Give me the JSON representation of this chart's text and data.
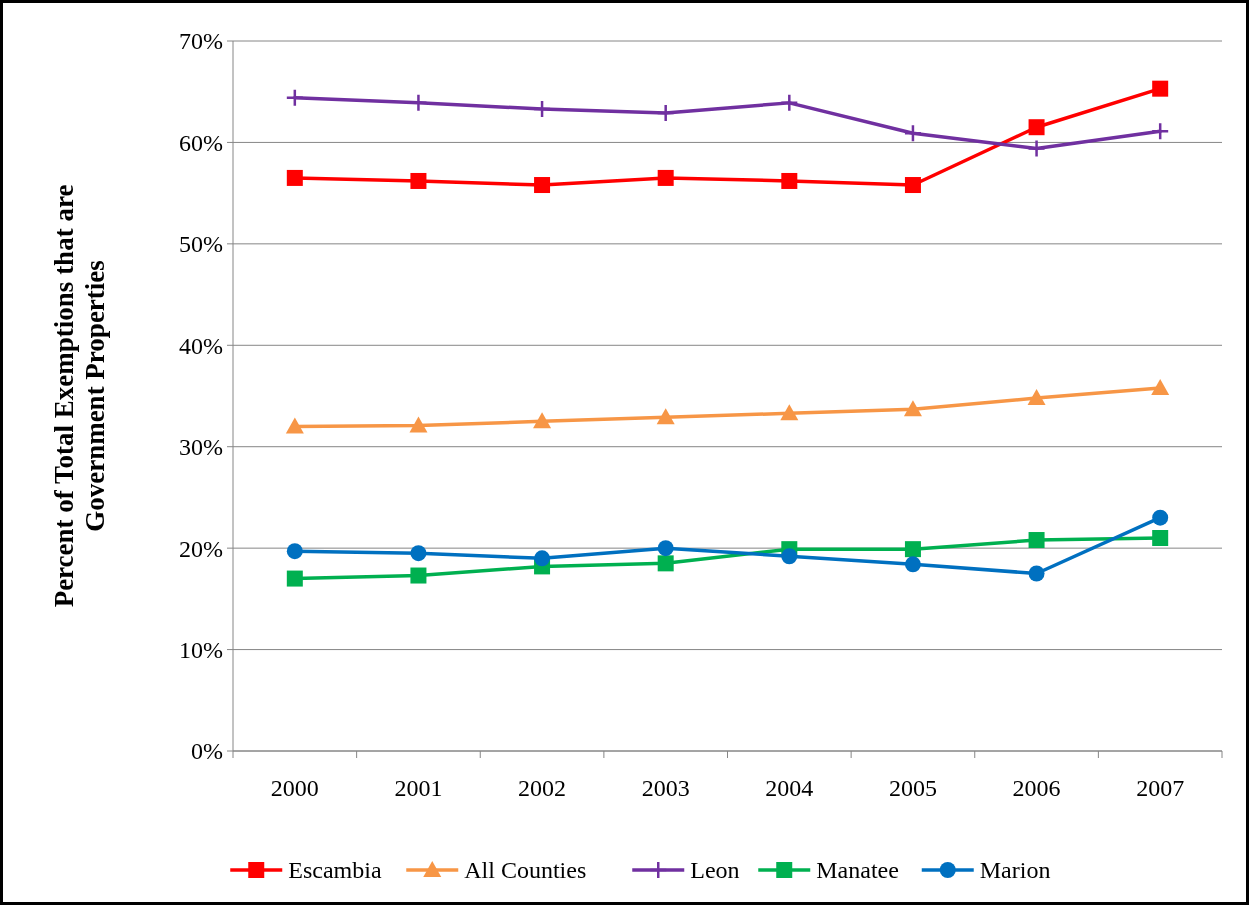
{
  "chart_data": {
    "type": "line",
    "ylabel": "Percent of Total Exemptions that are Government Properties",
    "categories": [
      "2000",
      "2001",
      "2002",
      "2003",
      "2004",
      "2005",
      "2006",
      "2007"
    ],
    "ylim": [
      0,
      70
    ],
    "yticks": [
      {
        "value": 0,
        "label": "0%"
      },
      {
        "value": 10,
        "label": "10%"
      },
      {
        "value": 20,
        "label": "20%"
      },
      {
        "value": 30,
        "label": "30%"
      },
      {
        "value": 40,
        "label": "40%"
      },
      {
        "value": 50,
        "label": "50%"
      },
      {
        "value": 60,
        "label": "60%"
      },
      {
        "value": 70,
        "label": "70%"
      }
    ],
    "grid": "y",
    "legend": "bottom",
    "series": [
      {
        "name": "Escambia",
        "color": "#ff0000",
        "marker": "square",
        "values": [
          56.5,
          56.2,
          55.8,
          56.5,
          56.2,
          55.8,
          61.5,
          65.3
        ]
      },
      {
        "name": "All Counties",
        "color": "#f79646",
        "marker": "triangle",
        "values": [
          32.0,
          32.1,
          32.5,
          32.9,
          33.3,
          33.7,
          34.8,
          35.8
        ]
      },
      {
        "name": "Leon",
        "color": "#7030a0",
        "marker": "cross",
        "values": [
          64.4,
          63.9,
          63.3,
          62.9,
          63.9,
          60.9,
          59.4,
          61.1
        ]
      },
      {
        "name": "Manatee",
        "color": "#00b050",
        "marker": "square",
        "values": [
          17.0,
          17.3,
          18.2,
          18.5,
          19.9,
          19.9,
          20.8,
          21.0
        ]
      },
      {
        "name": "Marion",
        "color": "#0070c0",
        "marker": "circle",
        "values": [
          19.7,
          19.5,
          19.0,
          20.0,
          19.2,
          18.4,
          17.5,
          23.0
        ]
      }
    ]
  }
}
